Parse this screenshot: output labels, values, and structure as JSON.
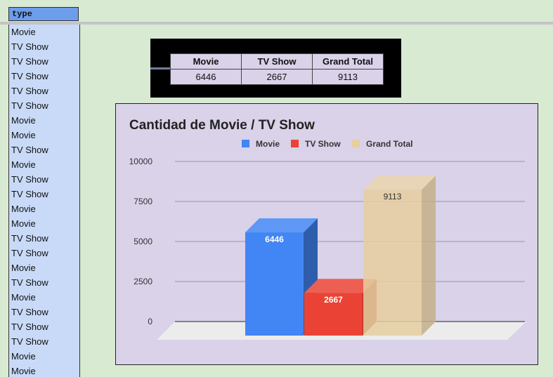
{
  "sheet": {
    "column_header": "type",
    "rows": [
      "Movie",
      "TV Show",
      "TV Show",
      "TV Show",
      "TV Show",
      "TV Show",
      "Movie",
      "Movie",
      "TV Show",
      "Movie",
      "TV Show",
      "TV Show",
      "Movie",
      "Movie",
      "TV Show",
      "TV Show",
      "Movie",
      "TV Show",
      "Movie",
      "TV Show",
      "TV Show",
      "TV Show",
      "Movie",
      "Movie"
    ]
  },
  "pivot": {
    "headers": [
      "Movie",
      "TV Show",
      "Grand Total"
    ],
    "values": [
      "6446",
      "2667",
      "9113"
    ]
  },
  "colors": {
    "movie": "#4285f4",
    "tv_show": "#ea4335",
    "grand_total": "#e6cfa0",
    "chart_background": "#d9d2e9",
    "sheet_background": "#d9ead3"
  },
  "chart_data": {
    "type": "bar",
    "style": "3d",
    "title": "Cantidad de Movie /  TV Show",
    "categories": [
      "Movie",
      "TV Show",
      "Grand Total"
    ],
    "series": [
      {
        "name": "Movie",
        "value": 6446,
        "color": "#4285f4",
        "label": "6446"
      },
      {
        "name": "TV Show",
        "value": 2667,
        "color": "#ea4335",
        "label": "2667"
      },
      {
        "name": "Grand Total",
        "value": 9113,
        "color": "#e6cfa0",
        "label": "9113"
      }
    ],
    "ylim": [
      0,
      10000
    ],
    "yticks": [
      "0",
      "2500",
      "5000",
      "7500",
      "10000"
    ],
    "grid": true,
    "legend": "top"
  }
}
